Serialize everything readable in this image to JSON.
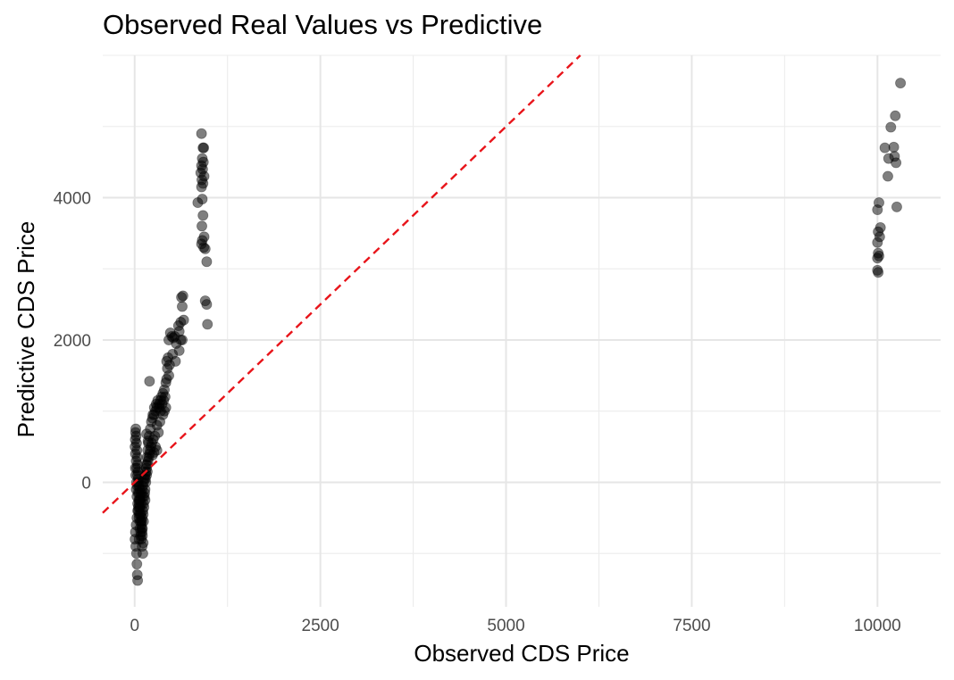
{
  "chart_data": {
    "type": "scatter",
    "title": "Observed Real Values vs Predictive",
    "xlabel": "Observed CDS Price",
    "ylabel": "Predictive CDS Price",
    "xlim": [
      -430,
      10850
    ],
    "ylim": [
      -1750,
      6000
    ],
    "x_ticks": [
      0,
      2500,
      5000,
      7500,
      10000
    ],
    "y_ticks": [
      0,
      2000,
      4000
    ],
    "grid": true,
    "legend": "none",
    "point_color": "#000000",
    "point_opacity": 0.5,
    "reference_line": {
      "slope": 1,
      "intercept": 0,
      "style": "dashed",
      "color": "#e8141a"
    },
    "points": [
      [
        900,
        4900
      ],
      [
        920,
        4700
      ],
      [
        930,
        4700
      ],
      [
        910,
        4550
      ],
      [
        925,
        4500
      ],
      [
        900,
        4450
      ],
      [
        915,
        4400
      ],
      [
        890,
        4350
      ],
      [
        935,
        4300
      ],
      [
        905,
        4250
      ],
      [
        920,
        4200
      ],
      [
        900,
        4150
      ],
      [
        850,
        3930
      ],
      [
        910,
        3980
      ],
      [
        920,
        3750
      ],
      [
        905,
        3600
      ],
      [
        935,
        3450
      ],
      [
        910,
        3400
      ],
      [
        900,
        3350
      ],
      [
        930,
        3300
      ],
      [
        950,
        3280
      ],
      [
        970,
        3100
      ],
      [
        950,
        2550
      ],
      [
        970,
        2500
      ],
      [
        980,
        2220
      ],
      [
        650,
        2620
      ],
      [
        630,
        2600
      ],
      [
        640,
        2470
      ],
      [
        660,
        2280
      ],
      [
        620,
        2250
      ],
      [
        590,
        2200
      ],
      [
        600,
        2120
      ],
      [
        620,
        2000
      ],
      [
        640,
        2000
      ],
      [
        560,
        1950
      ],
      [
        600,
        1850
      ],
      [
        550,
        1700
      ],
      [
        500,
        2050
      ],
      [
        480,
        2100
      ],
      [
        460,
        2000
      ],
      [
        520,
        2030
      ],
      [
        540,
        2050
      ],
      [
        510,
        1800
      ],
      [
        450,
        1750
      ],
      [
        430,
        1700
      ],
      [
        470,
        1650
      ],
      [
        440,
        1600
      ],
      [
        460,
        1500
      ],
      [
        430,
        1450
      ],
      [
        420,
        1400
      ],
      [
        400,
        1300
      ],
      [
        380,
        1250
      ],
      [
        360,
        1200
      ],
      [
        350,
        1150
      ],
      [
        330,
        1100
      ],
      [
        300,
        1050
      ],
      [
        280,
        1000
      ],
      [
        260,
        950
      ],
      [
        240,
        900
      ],
      [
        420,
        1050
      ],
      [
        400,
        1000
      ],
      [
        380,
        950
      ],
      [
        340,
        850
      ],
      [
        300,
        800
      ],
      [
        320,
        700
      ],
      [
        270,
        650
      ],
      [
        250,
        600
      ],
      [
        230,
        550
      ],
      [
        220,
        500
      ],
      [
        210,
        450
      ],
      [
        200,
        400
      ],
      [
        190,
        350
      ],
      [
        280,
        500
      ],
      [
        300,
        450
      ],
      [
        260,
        420
      ],
      [
        240,
        380
      ],
      [
        180,
        300
      ],
      [
        170,
        250
      ],
      [
        160,
        200
      ],
      [
        150,
        150
      ],
      [
        140,
        100
      ],
      [
        130,
        50
      ],
      [
        120,
        0
      ],
      [
        110,
        -50
      ],
      [
        100,
        -100
      ],
      [
        90,
        -150
      ],
      [
        80,
        -200
      ],
      [
        70,
        -250
      ],
      [
        60,
        -300
      ],
      [
        50,
        -350
      ],
      [
        40,
        -400
      ],
      [
        30,
        -500
      ],
      [
        20,
        -600
      ],
      [
        10,
        -700
      ],
      [
        5,
        -800
      ],
      [
        15,
        -900
      ],
      [
        25,
        -1000
      ],
      [
        30,
        -1150
      ],
      [
        35,
        -1300
      ],
      [
        40,
        -1380
      ],
      [
        200,
        1420
      ],
      [
        160,
        680
      ],
      [
        180,
        580
      ],
      [
        60,
        -450
      ],
      [
        70,
        -550
      ],
      [
        90,
        -600
      ],
      [
        100,
        -500
      ],
      [
        110,
        -400
      ],
      [
        120,
        -300
      ],
      [
        130,
        -200
      ],
      [
        140,
        -100
      ],
      [
        150,
        0
      ],
      [
        160,
        100
      ],
      [
        170,
        150
      ],
      [
        100,
        -700
      ],
      [
        80,
        -750
      ],
      [
        60,
        -800
      ],
      [
        120,
        -550
      ],
      [
        140,
        -250
      ],
      [
        110,
        -200
      ],
      [
        90,
        -300
      ],
      [
        70,
        -100
      ],
      [
        50,
        0
      ],
      [
        40,
        100
      ],
      [
        30,
        200
      ],
      [
        20,
        300
      ],
      [
        10,
        400
      ],
      [
        5,
        500
      ],
      [
        8,
        600
      ],
      [
        12,
        700
      ],
      [
        15,
        750
      ],
      [
        20,
        650
      ],
      [
        25,
        550
      ],
      [
        30,
        450
      ],
      [
        35,
        350
      ],
      [
        40,
        250
      ],
      [
        45,
        150
      ],
      [
        50,
        50
      ],
      [
        55,
        -50
      ],
      [
        60,
        -150
      ],
      [
        65,
        -250
      ],
      [
        75,
        -350
      ],
      [
        85,
        -450
      ],
      [
        95,
        -550
      ],
      [
        105,
        -650
      ],
      [
        115,
        -450
      ],
      [
        125,
        -350
      ],
      [
        135,
        -150
      ],
      [
        145,
        50
      ],
      [
        155,
        250
      ],
      [
        165,
        350
      ],
      [
        175,
        450
      ],
      [
        185,
        550
      ],
      [
        195,
        650
      ],
      [
        210,
        750
      ],
      [
        225,
        850
      ],
      [
        245,
        950
      ],
      [
        265,
        1050
      ],
      [
        290,
        1100
      ],
      [
        310,
        1150
      ],
      [
        330,
        1050
      ],
      [
        350,
        1000
      ],
      [
        370,
        1100
      ],
      [
        390,
        1150
      ],
      [
        410,
        1200
      ],
      [
        20,
        -100
      ],
      [
        30,
        -200
      ],
      [
        40,
        -300
      ],
      [
        50,
        -400
      ],
      [
        60,
        -500
      ],
      [
        70,
        -650
      ],
      [
        80,
        -700
      ],
      [
        90,
        -800
      ],
      [
        100,
        -900
      ],
      [
        110,
        -1000
      ],
      [
        15,
        100
      ],
      [
        25,
        0
      ],
      [
        35,
        -50
      ],
      [
        45,
        -150
      ],
      [
        55,
        -250
      ],
      [
        65,
        -350
      ],
      [
        75,
        -450
      ],
      [
        85,
        -550
      ],
      [
        95,
        -650
      ],
      [
        105,
        -750
      ],
      [
        115,
        -850
      ],
      [
        10,
        200
      ],
      [
        10000,
        3830
      ],
      [
        10020,
        3930
      ],
      [
        10040,
        3580
      ],
      [
        10010,
        3520
      ],
      [
        10030,
        3450
      ],
      [
        10000,
        3370
      ],
      [
        10010,
        3220
      ],
      [
        10000,
        3150
      ],
      [
        10020,
        3180
      ],
      [
        10000,
        2980
      ],
      [
        10010,
        2950
      ],
      [
        10100,
        4700
      ],
      [
        10150,
        4550
      ],
      [
        10140,
        4300
      ],
      [
        10180,
        4990
      ],
      [
        10220,
        4710
      ],
      [
        10230,
        4580
      ],
      [
        10250,
        4490
      ],
      [
        10240,
        5150
      ],
      [
        10260,
        3870
      ],
      [
        10310,
        5610
      ]
    ]
  }
}
